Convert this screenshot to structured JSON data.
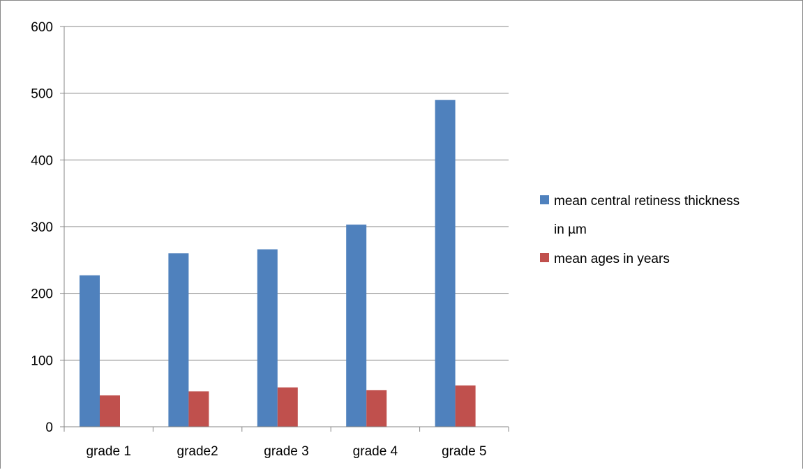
{
  "chart_data": {
    "type": "bar",
    "title": "",
    "xlabel": "",
    "ylabel": "",
    "categories": [
      "grade 1",
      "grade2",
      "grade 3",
      "grade 4",
      "grade 5"
    ],
    "series": [
      {
        "name": "mean central retiness thickness in µm",
        "legend_lines": [
          "mean central retiness thickness",
          "in µm"
        ],
        "color": "#4F81BD",
        "values": [
          227,
          260,
          266,
          303,
          490
        ]
      },
      {
        "name": "mean ages in years",
        "legend_lines": [
          "mean ages in years"
        ],
        "color": "#C0504D",
        "values": [
          47,
          53,
          59,
          55,
          62
        ]
      }
    ],
    "ylim": [
      0,
      600
    ],
    "yticks": [
      0,
      100,
      200,
      300,
      400,
      500,
      600
    ],
    "grid": true,
    "legend_position": "right"
  }
}
